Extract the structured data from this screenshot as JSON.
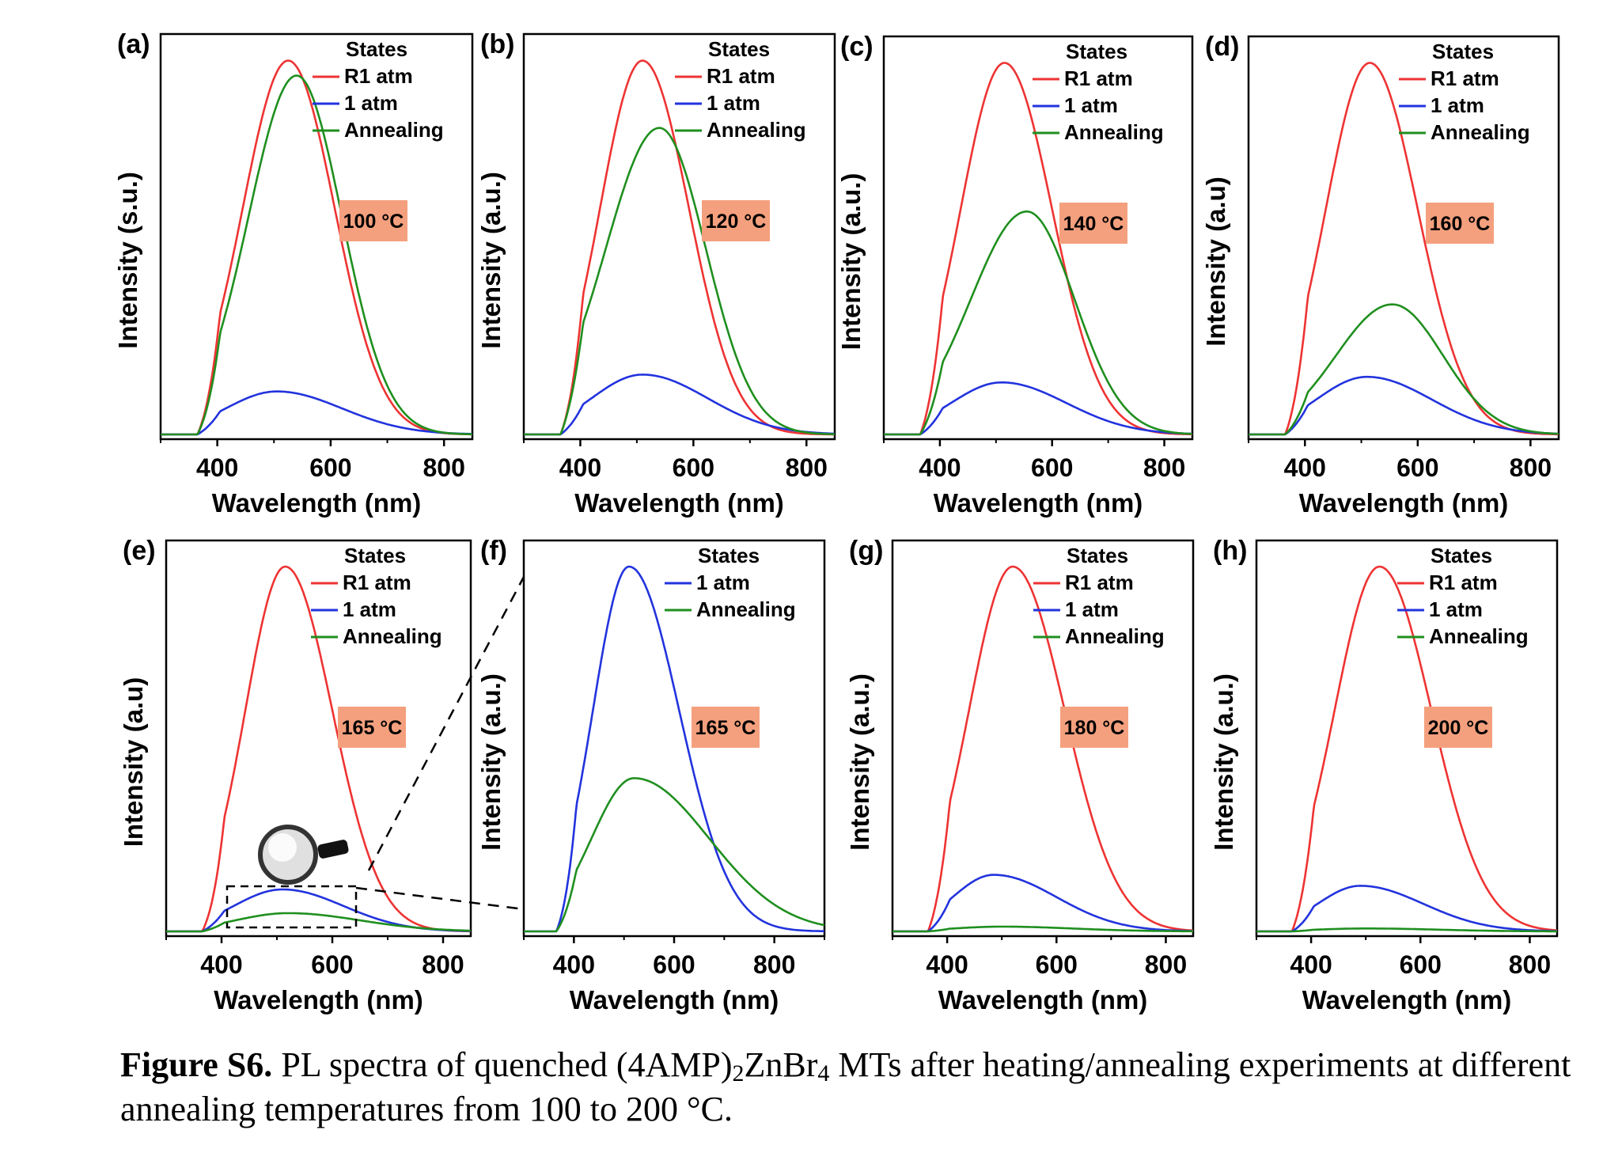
{
  "figure": {
    "caption": {
      "label": "Figure S6.",
      "text_1": " PL spectra of quenched (4AMP)",
      "sub_1": "2",
      "text_2": "ZnBr",
      "sub_2": "4",
      "text_3": " MTs after heating/annealing experiments at different annealing temperatures from 100 to 200 °C."
    }
  },
  "colors": {
    "R1 atm": "#ee3333",
    "1 atm": "#2233dd",
    "Annealing": "#1f8f1f",
    "temp_box": "#f4a07e"
  },
  "chart_data": [
    {
      "panel": "(a)",
      "type": "line",
      "temperature_label": "100 °C",
      "xlabel": "Wavelength (nm)",
      "ylabel": "Intensity (s.u.)",
      "xlim": [
        300,
        850
      ],
      "xticks": [
        400,
        600,
        800
      ],
      "ylim": [
        0,
        1.05
      ],
      "legend_title": "States",
      "legend_position": "top-right",
      "series": [
        {
          "name": "R1 atm",
          "peak_x": 525,
          "peak_y": 1.0,
          "onset": 365,
          "wl": 80,
          "wr": 82
        },
        {
          "name": "1 atm",
          "peak_x": 505,
          "peak_y": 0.115,
          "onset": 365,
          "wl": 90,
          "wr": 115
        },
        {
          "name": "Annealing",
          "peak_x": 540,
          "peak_y": 0.96,
          "onset": 365,
          "wl": 85,
          "wr": 80
        }
      ]
    },
    {
      "panel": "(b)",
      "type": "line",
      "temperature_label": "120 °C",
      "xlabel": "Wavelength (nm)",
      "ylabel": "Intensity (a.u.)",
      "xlim": [
        300,
        850
      ],
      "xticks": [
        400,
        600,
        800
      ],
      "ylim": [
        0,
        1.05
      ],
      "legend_title": "States",
      "legend_position": "top-right",
      "series": [
        {
          "name": "R1 atm",
          "peak_x": 510,
          "peak_y": 1.0,
          "onset": 365,
          "wl": 75,
          "wr": 82
        },
        {
          "name": "1 atm",
          "peak_x": 510,
          "peak_y": 0.16,
          "onset": 365,
          "wl": 90,
          "wr": 115
        },
        {
          "name": "Annealing",
          "peak_x": 540,
          "peak_y": 0.82,
          "onset": 365,
          "wl": 95,
          "wr": 82
        }
      ]
    },
    {
      "panel": "(c)",
      "type": "line",
      "temperature_label": "140 °C",
      "xlabel": "Wavelength (nm)",
      "ylabel": "Intensity (a.u.)",
      "xlim": [
        300,
        850
      ],
      "xticks": [
        400,
        600,
        800
      ],
      "ylim": [
        0,
        1.05
      ],
      "legend_title": "States",
      "legend_position": "top-right",
      "series": [
        {
          "name": "R1 atm",
          "peak_x": 515,
          "peak_y": 1.0,
          "onset": 365,
          "wl": 78,
          "wr": 85
        },
        {
          "name": "1 atm",
          "peak_x": 510,
          "peak_y": 0.14,
          "onset": 365,
          "wl": 90,
          "wr": 115
        },
        {
          "name": "Annealing",
          "peak_x": 555,
          "peak_y": 0.6,
          "onset": 365,
          "wl": 100,
          "wr": 85
        }
      ]
    },
    {
      "panel": "(d)",
      "type": "line",
      "temperature_label": "160 °C",
      "xlabel": "Wavelength (nm)",
      "ylabel": "Intensity (a.u)",
      "xlim": [
        300,
        850
      ],
      "xticks": [
        400,
        600,
        800
      ],
      "ylim": [
        0,
        1.05
      ],
      "legend_title": "States",
      "legend_position": "top-right",
      "series": [
        {
          "name": "R1 atm",
          "peak_x": 515,
          "peak_y": 1.0,
          "onset": 365,
          "wl": 78,
          "wr": 85
        },
        {
          "name": "1 atm",
          "peak_x": 510,
          "peak_y": 0.155,
          "onset": 365,
          "wl": 90,
          "wr": 115
        },
        {
          "name": "Annealing",
          "peak_x": 555,
          "peak_y": 0.35,
          "onset": 365,
          "wl": 100,
          "wr": 90
        }
      ]
    },
    {
      "panel": "(e)",
      "type": "line",
      "temperature_label": "165 °C",
      "xlabel": "Wavelength (nm)",
      "ylabel": "Intensity (a.u)",
      "xlim": [
        300,
        850
      ],
      "xticks": [
        400,
        600,
        800
      ],
      "ylim": [
        0,
        1.05
      ],
      "legend_title": "States",
      "legend_position": "top-right",
      "series": [
        {
          "name": "R1 atm",
          "peak_x": 515,
          "peak_y": 1.0,
          "onset": 365,
          "wl": 72,
          "wr": 85
        },
        {
          "name": "1 atm",
          "peak_x": 510,
          "peak_y": 0.115,
          "onset": 365,
          "wl": 88,
          "wr": 110
        },
        {
          "name": "Annealing",
          "peak_x": 520,
          "peak_y": 0.05,
          "onset": 365,
          "wl": 95,
          "wr": 130
        }
      ]
    },
    {
      "panel": "(f)",
      "type": "line",
      "temperature_label": "165 °C",
      "xlabel": "Wavelength (nm)",
      "ylabel": "Intensity (a.u.)",
      "xlim": [
        300,
        900
      ],
      "xticks": [
        400,
        600,
        800
      ],
      "ylim": [
        0,
        1.05
      ],
      "legend_title": "States",
      "legend_position": "top-right",
      "series": [
        {
          "name": "1 atm",
          "peak_x": 510,
          "peak_y": 1.0,
          "onset": 365,
          "wl": 72,
          "wr": 100
        },
        {
          "name": "Annealing",
          "peak_x": 520,
          "peak_y": 0.42,
          "onset": 365,
          "wl": 85,
          "wr": 150
        }
      ]
    },
    {
      "panel": "(g)",
      "type": "line",
      "temperature_label": "180 °C",
      "xlabel": "Wavelength (nm)",
      "ylabel": "Intensity (a.u.)",
      "xlim": [
        300,
        850
      ],
      "xticks": [
        400,
        600,
        800
      ],
      "ylim": [
        0,
        1.05
      ],
      "legend_title": "States",
      "legend_position": "top-right",
      "series": [
        {
          "name": "R1 atm",
          "peak_x": 520,
          "peak_y": 1.0,
          "onset": 365,
          "wl": 80,
          "wr": 95
        },
        {
          "name": "1 atm",
          "peak_x": 485,
          "peak_y": 0.155,
          "onset": 365,
          "wl": 75,
          "wr": 115
        },
        {
          "name": "Annealing",
          "peak_x": 500,
          "peak_y": 0.013,
          "onset": 365,
          "wl": 90,
          "wr": 130
        }
      ]
    },
    {
      "panel": "(h)",
      "type": "line",
      "temperature_label": "200 °C",
      "xlabel": "Wavelength (nm)",
      "ylabel": "Intensity (a.u.)",
      "xlim": [
        300,
        850
      ],
      "xticks": [
        400,
        600,
        800
      ],
      "ylim": [
        0,
        1.05
      ],
      "legend_title": "States",
      "legend_position": "top-right",
      "series": [
        {
          "name": "R1 atm",
          "peak_x": 525,
          "peak_y": 1.0,
          "onset": 365,
          "wl": 82,
          "wr": 95
        },
        {
          "name": "1 atm",
          "peak_x": 490,
          "peak_y": 0.125,
          "onset": 365,
          "wl": 78,
          "wr": 115
        },
        {
          "name": "Annealing",
          "peak_x": 500,
          "peak_y": 0.008,
          "onset": 365,
          "wl": 90,
          "wr": 130
        }
      ]
    }
  ]
}
